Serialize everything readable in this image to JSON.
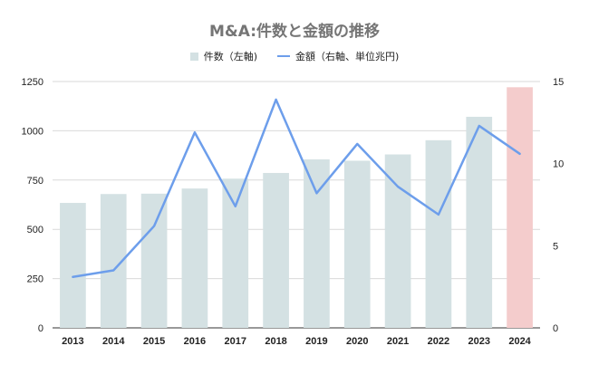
{
  "chart_data": {
    "type": "bar",
    "title": "M&A:件数と金額の推移",
    "categories": [
      "2013",
      "2014",
      "2015",
      "2016",
      "2017",
      "2018",
      "2019",
      "2020",
      "2021",
      "2022",
      "2023",
      "2024"
    ],
    "series": [
      {
        "name": "件数（左軸)",
        "type": "bar",
        "axis": "left",
        "values": [
          634,
          679,
          681,
          707,
          757,
          786,
          855,
          848,
          880,
          952,
          1071,
          1221
        ],
        "color": "#d4e1e3",
        "highlight_color": "#f4cccc",
        "highlight_index": 11
      },
      {
        "name": "金額（右軸、単位兆円)",
        "type": "line",
        "axis": "right",
        "values": [
          3.1,
          3.5,
          6.2,
          11.9,
          7.4,
          13.9,
          8.2,
          11.2,
          8.6,
          6.9,
          12.3,
          10.6
        ],
        "color": "#6d9eeb"
      }
    ],
    "y_left": {
      "ylim": [
        0,
        1250
      ],
      "ticks": [
        0,
        250,
        500,
        750,
        1000,
        1250
      ]
    },
    "y_right": {
      "ylim": [
        0,
        15
      ],
      "ticks": [
        0,
        5,
        10,
        15
      ]
    },
    "grid": true,
    "legend_position": "top"
  }
}
